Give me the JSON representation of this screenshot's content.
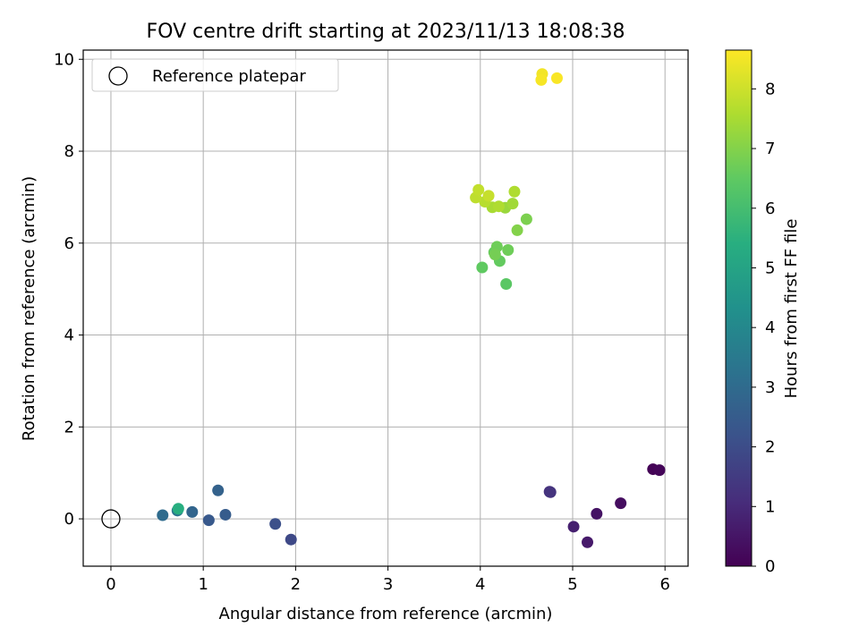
{
  "chart_data": {
    "type": "scatter",
    "title": "FOV centre drift starting at 2023/11/13 18:08:38",
    "xlabel": "Angular distance from reference (arcmin)",
    "ylabel": "Rotation from reference (arcmin)",
    "xlim": [
      -0.3,
      6.25
    ],
    "ylim": [
      -1.03,
      10.2
    ],
    "xticks": [
      "0",
      "1",
      "2",
      "3",
      "4",
      "5",
      "6"
    ],
    "yticks": [
      "0",
      "2",
      "4",
      "6",
      "8",
      "10"
    ],
    "grid": true,
    "legend": {
      "placement": "top-left",
      "entries": [
        "Reference platepar"
      ]
    },
    "reference_point": {
      "x": 0,
      "y": 0,
      "label": "Reference platepar"
    },
    "colorbar": {
      "label": "Hours from first FF file",
      "range": [
        0,
        8.65
      ],
      "ticks": [
        "0",
        "1",
        "2",
        "3",
        "4",
        "5",
        "6",
        "7",
        "8"
      ],
      "colormap": "viridis"
    },
    "points": [
      {
        "x": 5.87,
        "y": 1.08,
        "h": 0.05
      },
      {
        "x": 5.94,
        "y": 1.06,
        "h": 0.1
      },
      {
        "x": 5.52,
        "y": 0.34,
        "h": 0.3
      },
      {
        "x": 5.26,
        "y": 0.11,
        "h": 0.45
      },
      {
        "x": 5.16,
        "y": -0.51,
        "h": 0.6
      },
      {
        "x": 5.01,
        "y": -0.17,
        "h": 0.75
      },
      {
        "x": 4.75,
        "y": 0.59,
        "h": 1.2
      },
      {
        "x": 4.76,
        "y": 0.58,
        "h": 1.3
      },
      {
        "x": 1.95,
        "y": -0.45,
        "h": 1.9
      },
      {
        "x": 1.78,
        "y": -0.11,
        "h": 2.1
      },
      {
        "x": 1.24,
        "y": 0.09,
        "h": 2.5
      },
      {
        "x": 1.16,
        "y": 0.62,
        "h": 2.7
      },
      {
        "x": 1.06,
        "y": -0.03,
        "h": 2.4
      },
      {
        "x": 0.88,
        "y": 0.15,
        "h": 2.8
      },
      {
        "x": 0.56,
        "y": 0.08,
        "h": 3.0
      },
      {
        "x": 0.72,
        "y": 0.18,
        "h": 3.4
      },
      {
        "x": 0.73,
        "y": 0.22,
        "h": 5.4
      },
      {
        "x": 4.28,
        "y": 5.11,
        "h": 6.4
      },
      {
        "x": 4.02,
        "y": 5.47,
        "h": 6.5
      },
      {
        "x": 4.21,
        "y": 5.61,
        "h": 6.55
      },
      {
        "x": 4.15,
        "y": 5.8,
        "h": 6.6
      },
      {
        "x": 4.3,
        "y": 5.85,
        "h": 6.7
      },
      {
        "x": 4.18,
        "y": 5.92,
        "h": 6.7
      },
      {
        "x": 4.16,
        "y": 5.75,
        "h": 6.8
      },
      {
        "x": 4.4,
        "y": 6.28,
        "h": 7.0
      },
      {
        "x": 4.5,
        "y": 6.52,
        "h": 6.9
      },
      {
        "x": 4.27,
        "y": 6.77,
        "h": 7.3
      },
      {
        "x": 4.35,
        "y": 6.86,
        "h": 7.4
      },
      {
        "x": 4.13,
        "y": 6.78,
        "h": 7.5
      },
      {
        "x": 4.2,
        "y": 6.8,
        "h": 7.6
      },
      {
        "x": 4.05,
        "y": 6.9,
        "h": 7.7
      },
      {
        "x": 4.37,
        "y": 7.12,
        "h": 7.6
      },
      {
        "x": 3.95,
        "y": 6.99,
        "h": 7.8
      },
      {
        "x": 4.09,
        "y": 7.03,
        "h": 7.9
      },
      {
        "x": 3.98,
        "y": 7.16,
        "h": 7.85
      },
      {
        "x": 4.67,
        "y": 9.68,
        "h": 8.5
      },
      {
        "x": 4.66,
        "y": 9.55,
        "h": 8.55
      },
      {
        "x": 4.83,
        "y": 9.59,
        "h": 8.6
      }
    ]
  }
}
